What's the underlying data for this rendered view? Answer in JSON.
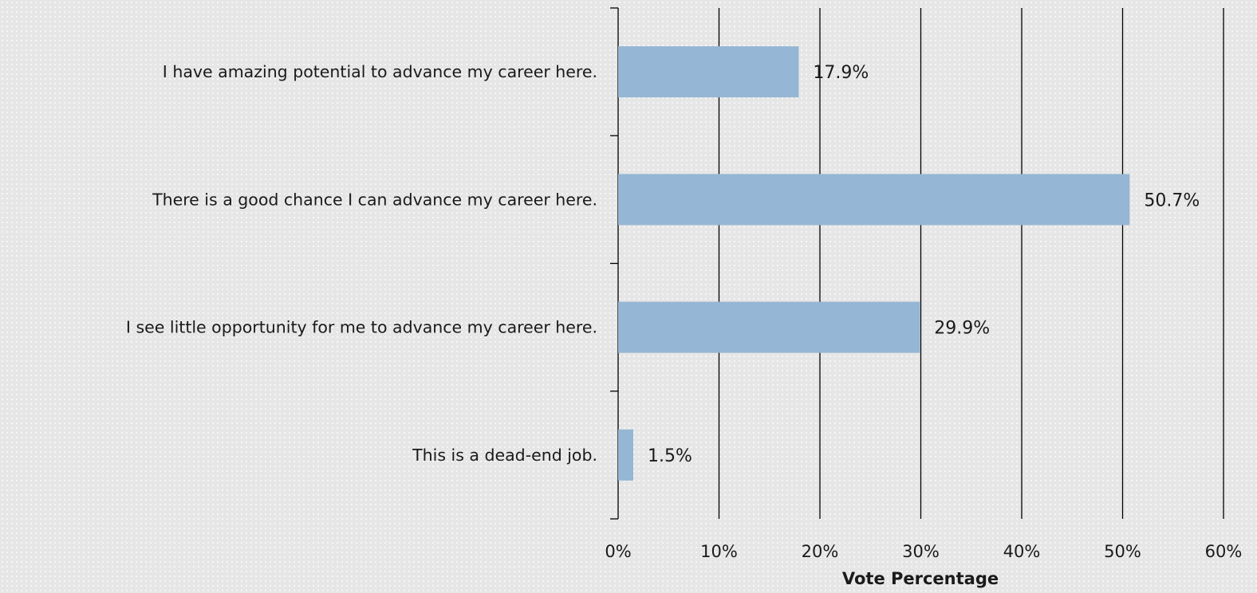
{
  "chart_data": {
    "type": "bar",
    "orientation": "horizontal",
    "categories": [
      "I have amazing potential to advance my career here.",
      "There is a good chance I can advance my career here.",
      "I see little opportunity for me to advance my career here.",
      "This is a dead-end job."
    ],
    "values": [
      17.9,
      50.7,
      29.9,
      1.5
    ],
    "value_labels": [
      "17.9%",
      "50.7%",
      "29.9%",
      "1.5%"
    ],
    "xlabel": "Vote Percentage",
    "ylabel": "",
    "title": "",
    "xlim": [
      0,
      60
    ],
    "xticks": [
      0,
      10,
      20,
      30,
      40,
      50,
      60
    ],
    "xtick_labels": [
      "0%",
      "10%",
      "20%",
      "30%",
      "40%",
      "50%",
      "60%"
    ],
    "grid": "vertical",
    "legend": "none",
    "colors": {
      "bar": "#95b6d4",
      "grid": "#000000",
      "text": "#1a1a1a"
    }
  }
}
